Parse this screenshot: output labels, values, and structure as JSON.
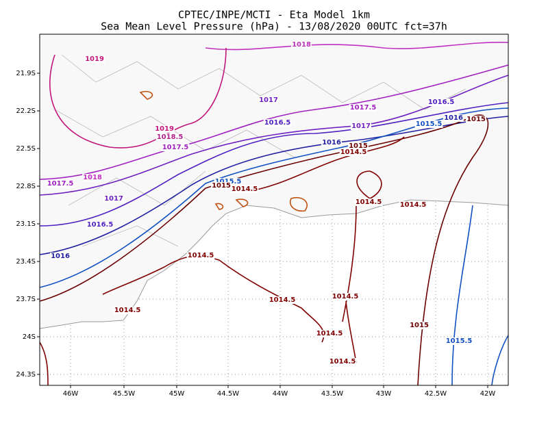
{
  "header": {
    "title": [
      "CPTEC/INPE/MCTI -  Eta Model 1km",
      "Sea Mean Level Pressure (hPa) - 13/08/2020 00UTC fct=37h"
    ]
  },
  "map": {
    "lat_labels": [
      "21.9S",
      "22.2S",
      "22.5S",
      "22.8S",
      "23.1S",
      "23.4S",
      "23.7S",
      "24S",
      "24.3S"
    ],
    "lon_labels": [
      "46W",
      "45.5W",
      "45W",
      "44.5W",
      "44W",
      "43.5W",
      "43W",
      "42.5W",
      "42W"
    ],
    "contour_labels": [
      {
        "text": "1018",
        "color": "#c030c0"
      },
      {
        "text": "1019",
        "color": "#c0157a"
      },
      {
        "text": "1017",
        "color": "#7020c0"
      },
      {
        "text": "1017.5",
        "color": "#a020c0"
      },
      {
        "text": "1016.5",
        "color": "#5020c0"
      },
      {
        "text": "1016",
        "color": "#2020a0"
      },
      {
        "text": "1015.5",
        "color": "#1050c0"
      },
      {
        "text": "1015",
        "color": "#6a0000"
      },
      {
        "text": "1019",
        "color": "#c0157a"
      },
      {
        "text": "1018.5",
        "color": "#b0208a"
      },
      {
        "text": "1017.5",
        "color": "#a020c0"
      },
      {
        "text": "1016.5",
        "color": "#5020c0"
      },
      {
        "text": "1017",
        "color": "#7020c0"
      },
      {
        "text": "1016",
        "color": "#2020a0"
      },
      {
        "text": "1015",
        "color": "#6a0000"
      },
      {
        "text": "1014.5",
        "color": "#800000"
      },
      {
        "text": "1018",
        "color": "#c030c0"
      },
      {
        "text": "1017.5",
        "color": "#a020c0"
      },
      {
        "text": "1017",
        "color": "#7020c0"
      },
      {
        "text": "1015.5",
        "color": "#1050c0"
      },
      {
        "text": "1015",
        "color": "#6a0000"
      },
      {
        "text": "1014.5",
        "color": "#800000"
      },
      {
        "text": "1014.5",
        "color": "#800000"
      },
      {
        "text": "1014.5",
        "color": "#800000"
      },
      {
        "text": "1016.5",
        "color": "#5020c0"
      },
      {
        "text": "1016",
        "color": "#2020a0"
      },
      {
        "text": "1014.5",
        "color": "#800000"
      },
      {
        "text": "1014.5",
        "color": "#800000"
      },
      {
        "text": "1014.5",
        "color": "#800000"
      },
      {
        "text": "1014.5",
        "color": "#800000"
      },
      {
        "text": "1015",
        "color": "#6a0000"
      },
      {
        "text": "1015.5",
        "color": "#1050c0"
      },
      {
        "text": "1014.5",
        "color": "#800000"
      },
      {
        "text": "1014.5",
        "color": "#800000"
      }
    ]
  }
}
